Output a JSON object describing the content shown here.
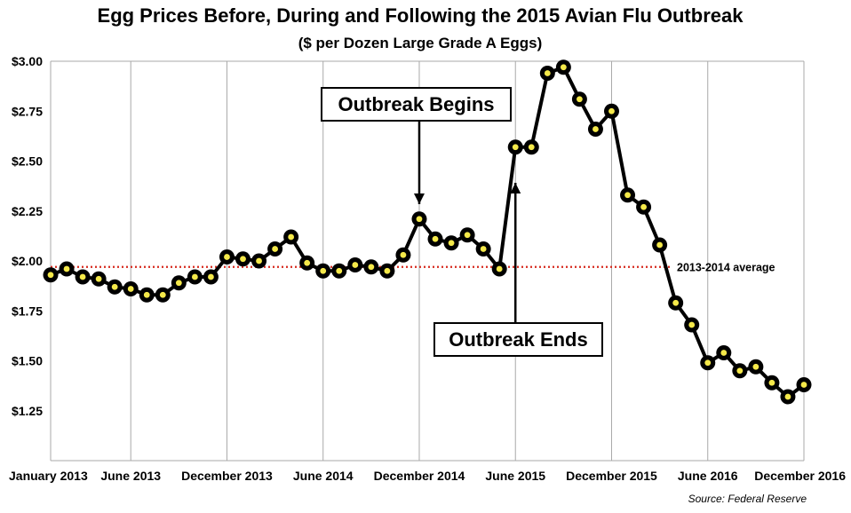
{
  "chart_data": {
    "type": "line",
    "title": "Egg Prices Before, During and Following the 2015 Avian Flu Outbreak",
    "subtitle": "($ per Dozen Large Grade A Eggs)",
    "source": "Source: Federal Reserve",
    "ylim": [
      1.0,
      3.0
    ],
    "y_ticks": [
      "$3.00",
      "$2.75",
      "$2.50",
      "$2.25",
      "$2.00",
      "$1.75",
      "$1.50",
      "$1.25"
    ],
    "y_tick_values": [
      3.0,
      2.75,
      2.5,
      2.25,
      2.0,
      1.75,
      1.5,
      1.25
    ],
    "x_tick_labels": [
      "January 2013",
      "June 2013",
      "December 2013",
      "June 2014",
      "December 2014",
      "June 2015",
      "December 2015",
      "June 2016",
      "December 2016"
    ],
    "x_tick_months": [
      "2013-01",
      "2013-06",
      "2013-12",
      "2014-06",
      "2014-12",
      "2015-06",
      "2015-12",
      "2016-06",
      "2016-12"
    ],
    "grid": "vertical gridlines at labeled months",
    "x": [
      "2013-01",
      "2013-02",
      "2013-03",
      "2013-04",
      "2013-05",
      "2013-06",
      "2013-07",
      "2013-08",
      "2013-09",
      "2013-10",
      "2013-11",
      "2013-12",
      "2014-01",
      "2014-02",
      "2014-03",
      "2014-04",
      "2014-05",
      "2014-06",
      "2014-07",
      "2014-08",
      "2014-09",
      "2014-10",
      "2014-11",
      "2014-12",
      "2015-01",
      "2015-02",
      "2015-03",
      "2015-04",
      "2015-05",
      "2015-06",
      "2015-07",
      "2015-08",
      "2015-09",
      "2015-10",
      "2015-11",
      "2015-12",
      "2016-01",
      "2016-02",
      "2016-03",
      "2016-04",
      "2016-05",
      "2016-06",
      "2016-07",
      "2016-08",
      "2016-09",
      "2016-10",
      "2016-11",
      "2016-12"
    ],
    "series": [
      {
        "name": "",
        "color": "#000000",
        "marker_fill": "#f5e94a",
        "values": [
          1.93,
          1.96,
          1.92,
          1.91,
          1.87,
          1.86,
          1.83,
          1.83,
          1.89,
          1.92,
          1.92,
          2.02,
          2.01,
          2.0,
          2.06,
          2.12,
          1.99,
          1.95,
          1.95,
          1.98,
          1.97,
          1.95,
          2.03,
          2.21,
          2.11,
          2.09,
          2.13,
          2.06,
          1.96,
          2.57,
          2.57,
          2.94,
          2.97,
          2.81,
          2.66,
          2.75,
          2.33,
          2.27,
          2.08,
          1.79,
          1.68,
          1.49,
          1.54,
          1.45,
          1.47,
          1.39,
          1.32,
          1.38
        ]
      }
    ],
    "reference_line": {
      "label": "2013-2014 average",
      "value": 1.97,
      "color": "#d62a1e"
    },
    "annotations": [
      {
        "text": "Outbreak Begins",
        "arrow_to": "2014-12"
      },
      {
        "text": "Outbreak Ends",
        "arrow_to": "2015-06"
      }
    ]
  }
}
